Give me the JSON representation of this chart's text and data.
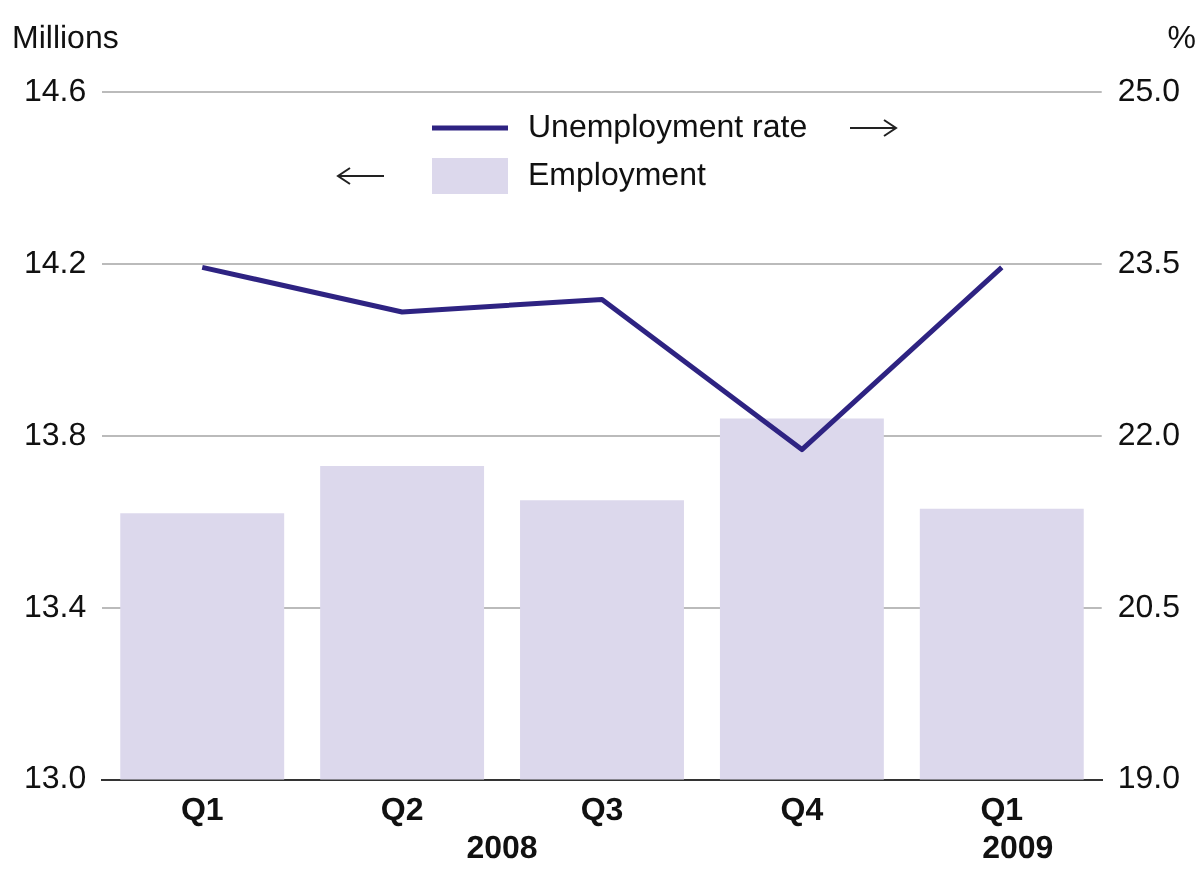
{
  "chart_data": {
    "type": "bar",
    "ylabel": "Millions",
    "y2label": "%",
    "categories": [
      "Q1",
      "Q2",
      "Q3",
      "Q4",
      "Q1"
    ],
    "series": [
      {
        "name": "Unemployment rate",
        "type": "line",
        "axis": "y2",
        "color": "#2e2382",
        "values": [
          23.47,
          23.08,
          23.19,
          21.88,
          23.47
        ]
      },
      {
        "name": "Employment",
        "color": "#dcd8ec",
        "values": [
          13.62,
          13.73,
          13.65,
          13.84,
          13.63
        ]
      }
    ],
    "ylim": [
      13.0,
      14.6
    ],
    "yticks": [
      {
        "value": 13.0,
        "label": "13.0"
      },
      {
        "value": 13.4,
        "label": "13.4"
      },
      {
        "value": 13.8,
        "label": "13.8"
      },
      {
        "value": 14.2,
        "label": "14.2"
      },
      {
        "value": 14.6,
        "label": "14.6"
      }
    ],
    "y2lim": [
      19.0,
      25.0
    ],
    "y2ticks": [
      {
        "value": 19.0,
        "label": "19.0"
      },
      {
        "value": 20.5,
        "label": "20.5"
      },
      {
        "value": 22.0,
        "label": "22.0"
      },
      {
        "value": 23.5,
        "label": "23.5"
      },
      {
        "value": 25.0,
        "label": "25.0"
      }
    ],
    "annotations": [
      "2008",
      "2009"
    ],
    "grid": "y",
    "legend": "top"
  }
}
